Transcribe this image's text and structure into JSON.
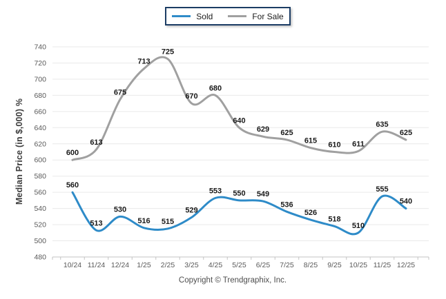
{
  "legend": {
    "items": [
      {
        "label": "Sold",
        "color": "#2e8bc8"
      },
      {
        "label": "For Sale",
        "color": "#a0a0a0"
      }
    ]
  },
  "chart_data": {
    "type": "line",
    "title": "",
    "xlabel": "",
    "ylabel": "Median Price (in $,000) %",
    "ylim": [
      480,
      740
    ],
    "yticks": [
      480,
      500,
      520,
      540,
      560,
      580,
      600,
      620,
      640,
      660,
      680,
      700,
      720,
      740
    ],
    "grid": "horizontal",
    "legend_position": "top-center",
    "smooth": true,
    "categories": [
      "10/24",
      "11/24",
      "12/24",
      "1/25",
      "2/25",
      "3/25",
      "4/25",
      "5/25",
      "6/25",
      "7/25",
      "8/25",
      "9/25",
      "10/25",
      "11/25",
      "12/25"
    ],
    "series": [
      {
        "name": "Sold",
        "color": "#2e8bc8",
        "values": [
          560,
          513,
          530,
          516,
          515,
          529,
          553,
          550,
          549,
          536,
          526,
          518,
          510,
          555,
          540
        ]
      },
      {
        "name": "For Sale",
        "color": "#a0a0a0",
        "values": [
          600,
          613,
          675,
          713,
          725,
          670,
          680,
          640,
          629,
          625,
          615,
          610,
          611,
          635,
          625
        ]
      }
    ]
  },
  "footer": {
    "copyright": "Copyright © Trendgraphix, Inc."
  },
  "colors": {
    "grid_line": "#e9e9e9",
    "axis_line": "#c3c3c3",
    "tick_mark": "#c3c3c3",
    "tick_label": "#595959",
    "data_label": "#1a1a1a",
    "axis_title": "#3d3d3d",
    "legend_border": "#1b3c64",
    "background": "#ffffff"
  }
}
